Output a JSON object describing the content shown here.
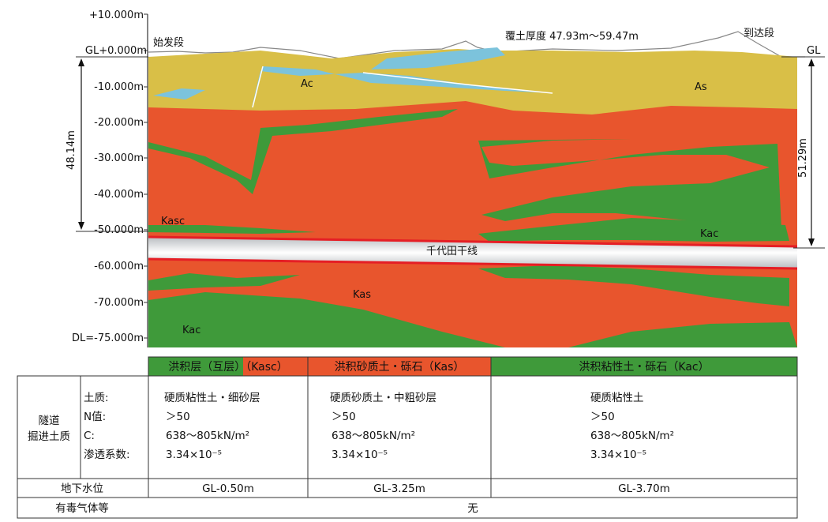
{
  "diagram": {
    "elevations": [
      "+10.000m",
      "GL+0.000m",
      "-10.000m",
      "-20.000m",
      "-30.000m",
      "-40.000m",
      "-50.000m",
      "-60.000m",
      "-70.000m",
      "DL=-75.000m"
    ],
    "start_label": "始发段",
    "end_label": "到达段",
    "gl_right": "GL",
    "cover_label": "覆土厚度 47.93m～59.47m",
    "depth_left": "48.14m",
    "depth_right": "51.29m",
    "tunnel_label": "千代田干线",
    "layer_labels": {
      "ac": "Ac",
      "as": "As",
      "kasc": "Kasc",
      "kac_right": "Kac",
      "kas": "Kas",
      "kac_bottom": "Kac"
    },
    "colors": {
      "as": "#d9bf47",
      "kas": "#e8552d",
      "kac": "#3f9a3a",
      "ac": "#7cc3dc",
      "tunnel_edge": "#e51e25"
    }
  },
  "table": {
    "headers": [
      "洪积层（互层）（Kasc）",
      "洪积砂质土・砾石（Kas）",
      "洪积粘性土・砾石（Kac）"
    ],
    "row_title": [
      "隧道",
      "掘进土质"
    ],
    "fields": [
      "土质:",
      "N值:",
      "C:",
      "渗透系数:"
    ],
    "columns": [
      {
        "soil": "硬质粘性土・细砂层",
        "n": "＞50",
        "c": "638～805kN/m²",
        "perm": "3.34×10⁻⁵"
      },
      {
        "soil": "硬质砂质土・中粗砂层",
        "n": "＞50",
        "c": "638～805kN/m²",
        "perm": "3.34×10⁻⁵"
      },
      {
        "soil": "硬质粘性土",
        "n": "＞50",
        "c": "638～805kN/m²",
        "perm": "3.34×10⁻⁵"
      }
    ],
    "groundwater_label": "地下水位",
    "groundwater": [
      "GL-0.50m",
      "GL-3.25m",
      "GL-3.70m"
    ],
    "gas_label": "有毒气体等",
    "gas_value": "无"
  }
}
